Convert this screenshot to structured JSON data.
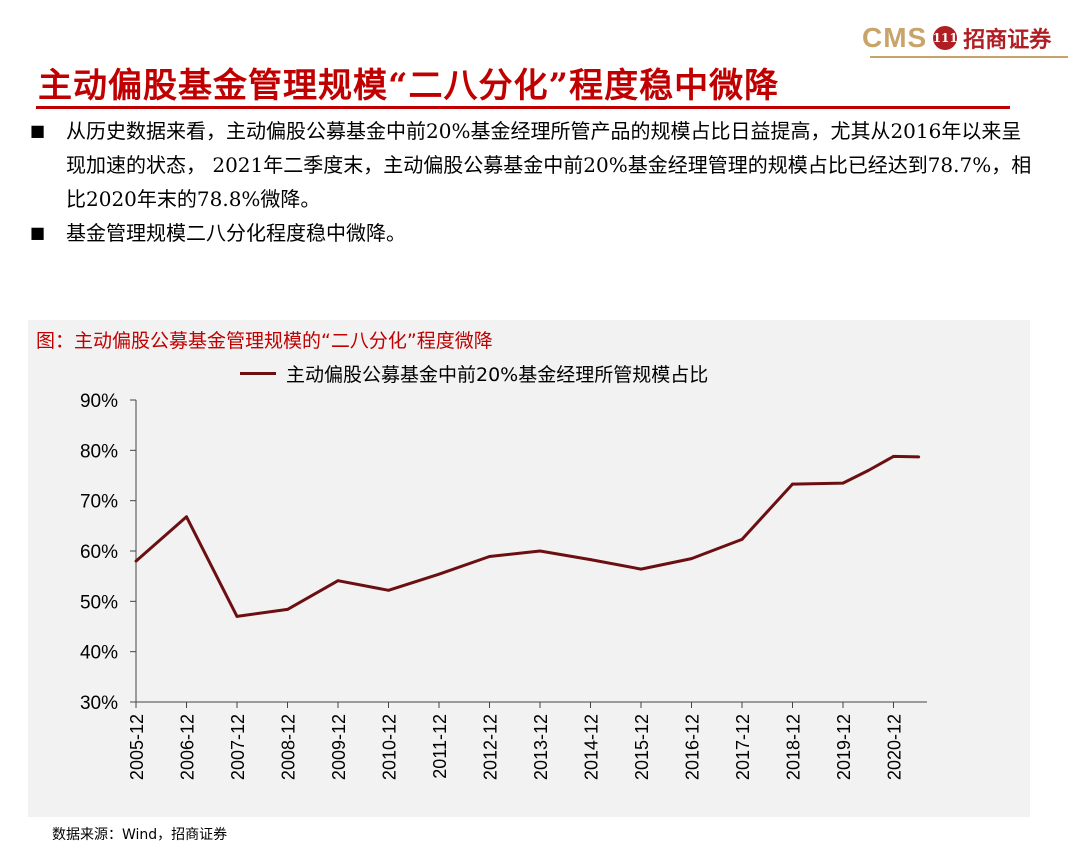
{
  "brand": {
    "name": "CMS",
    "badge": "111",
    "name_cn": "招商证券"
  },
  "page_title": "主动偏股基金管理规模“二八分化”程度稳中微降",
  "bullets": [
    "从历史数据来看，主动偏股公募基金中前20%基金经理所管产品的规模占比日益提高，尤其从2016年以来呈现加速的状态， 2021年二季度末，主动偏股公募基金中前20%基金经理管理的规模占比已经达到78.7%，相比2020年末的78.8%微降。",
    "基金管理规模二八分化程度稳中微降。"
  ],
  "bullet_mark": "■",
  "chart_title": "图：主动偏股公募基金管理规模的“二八分化”程度微降",
  "source": "数据来源：Wind，招商证券",
  "colors": {
    "accent": "#c00000",
    "series": "#6b0f12",
    "gold": "#c8a46a"
  },
  "chart_data": {
    "type": "line",
    "title": "",
    "xlabel": "",
    "ylabel": "",
    "ylim": [
      30,
      90
    ],
    "yticks": [
      "30%",
      "40%",
      "50%",
      "60%",
      "70%",
      "80%",
      "90%"
    ],
    "categories": [
      "2005-12",
      "2006-12",
      "2007-12",
      "2008-12",
      "2009-12",
      "2010-12",
      "2011-12",
      "2012-12",
      "2013-12",
      "2014-12",
      "2015-12",
      "2016-12",
      "2017-12",
      "2018-12",
      "2019-12",
      "2020-12"
    ],
    "legend_position": "top",
    "grid": false,
    "series": [
      {
        "name": "主动偏股公募基金中前20%基金经理所管规模占比",
        "x": [
          "2005-12",
          "2006-12",
          "2007-12",
          "2008-12",
          "2009-12",
          "2010-12",
          "2011-12",
          "2012-12",
          "2013-12",
          "2014-12",
          "2015-12",
          "2016-12",
          "2017-12",
          "2018-12",
          "2019-12",
          "2020-06",
          "2020-12",
          "2021-06"
        ],
        "values": [
          58.0,
          66.8,
          47.0,
          48.4,
          54.1,
          52.2,
          55.4,
          58.9,
          60.0,
          58.3,
          56.4,
          58.5,
          62.3,
          73.3,
          73.5,
          76.0,
          78.8,
          78.7
        ]
      }
    ]
  }
}
